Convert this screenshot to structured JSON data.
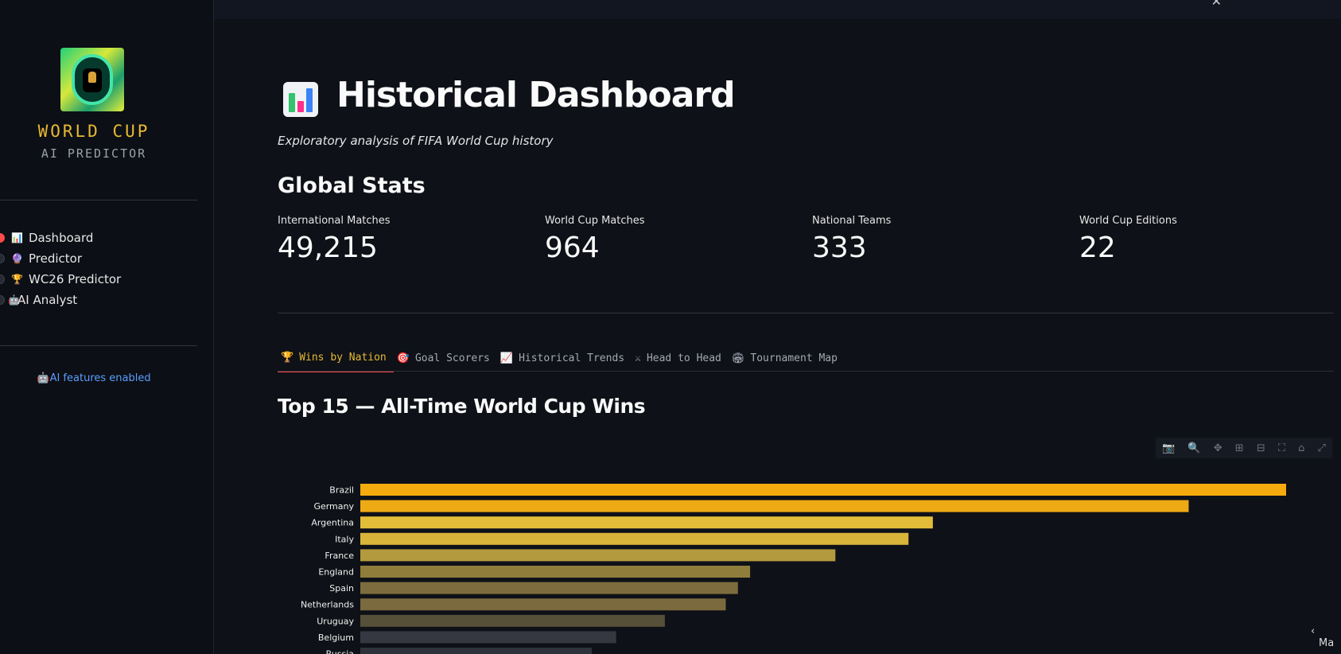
{
  "sidebar": {
    "brand_title": "WORLD CUP",
    "brand_subtitle": "AI PREDICTOR",
    "nav": [
      {
        "label": "Dashboard",
        "icon": "bar-chart-icon",
        "glyph": "📊",
        "active": true
      },
      {
        "label": "Predictor",
        "icon": "crystal-ball-icon",
        "glyph": "🔮",
        "active": false
      },
      {
        "label": "WC26 Predictor",
        "icon": "trophy-icon",
        "glyph": "🏆",
        "active": false
      },
      {
        "label": "AI Analyst",
        "icon": "robot-icon",
        "glyph": "🤖",
        "active": false
      }
    ],
    "ai_note": "🤖AI features enabled"
  },
  "header": {
    "title": "Historical Dashboard",
    "subtitle": "Exploratory analysis of FIFA World Cup history"
  },
  "global_stats": {
    "heading": "Global Stats",
    "metrics": [
      {
        "label": "International Matches",
        "value": "49,215"
      },
      {
        "label": "World Cup Matches",
        "value": "964"
      },
      {
        "label": "National Teams",
        "value": "333"
      },
      {
        "label": "World Cup Editions",
        "value": "22"
      }
    ]
  },
  "tabs": [
    {
      "label": "Wins by Nation",
      "glyph": "🏆",
      "icon": "trophy-icon",
      "active": true
    },
    {
      "label": "Goal Scorers",
      "glyph": "🎯",
      "icon": "target-icon",
      "active": false
    },
    {
      "label": "Historical Trends",
      "glyph": "📈",
      "icon": "trend-chart-icon",
      "active": false
    },
    {
      "label": "Head to Head",
      "glyph": "⚔",
      "icon": "crossed-swords-icon",
      "active": false
    },
    {
      "label": "Tournament Map",
      "glyph": "🏟",
      "icon": "stadium-icon",
      "active": false
    }
  ],
  "section_heading": "Top 15 — All-Time World Cup Wins",
  "modebar_icons": [
    "camera-icon",
    "zoom-icon",
    "pan-icon",
    "zoom-in-icon",
    "zoom-out-icon",
    "autoscale-icon",
    "home-icon",
    "fullscreen-icon"
  ],
  "edge_label": "Ma",
  "colors": {
    "accent": "#e8b931",
    "active_tab_underline": "#ff4b4b",
    "link": "#5b9dff"
  },
  "chart_data": {
    "type": "bar",
    "orientation": "horizontal",
    "categories": [
      "Brazil",
      "Germany",
      "Argentina",
      "Italy",
      "France",
      "England",
      "Spain",
      "Netherlands",
      "Uruguay",
      "Belgium",
      "Russia"
    ],
    "values": [
      76,
      68,
      47,
      45,
      39,
      32,
      31,
      30,
      25,
      21,
      19
    ],
    "bar_colors": [
      "#f5aa0d",
      "#eeaa14",
      "#e3bd3a",
      "#d8b43a",
      "#b49a3e",
      "#8f7d3c",
      "#7d6d3e",
      "#7a6a3e",
      "#575039",
      "#353840",
      "#2e323b"
    ],
    "title": "",
    "xlabel": "",
    "ylabel": "",
    "xlim": [
      0,
      76
    ]
  }
}
